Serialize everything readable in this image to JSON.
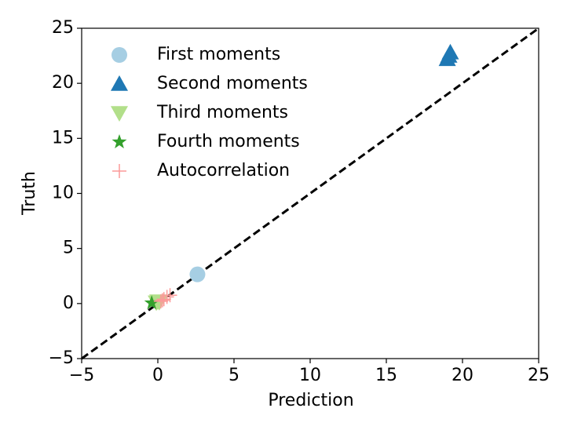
{
  "chart_data": {
    "type": "scatter",
    "x_label": "Prediction",
    "y_label": "Truth",
    "xlim": [
      -5,
      25
    ],
    "ylim": [
      -5,
      25
    ],
    "xticks": [
      {
        "value": -5,
        "label": "−5"
      },
      0,
      5,
      10,
      15,
      20,
      25
    ],
    "yticks": [
      {
        "value": -5,
        "label": "−5"
      },
      0,
      5,
      10,
      15,
      20,
      25
    ],
    "identity_line": true,
    "legend": "upper left",
    "series": [
      {
        "name": "First moments",
        "color": "#a6cee3",
        "marker": "circle",
        "x": [
          2.6
        ],
        "y": [
          2.65
        ]
      },
      {
        "name": "Second moments",
        "color": "#1f78b4",
        "marker": "triangle-up",
        "x": [
          19.0,
          19.1,
          19.2
        ],
        "y": [
          22.2,
          22.5,
          22.8
        ]
      },
      {
        "name": "Third moments",
        "color": "#b2df8a",
        "marker": "triangle-down",
        "x": [
          -0.1,
          0.0,
          0.1
        ],
        "y": [
          0.1,
          0.2,
          0.15
        ]
      },
      {
        "name": "Fourth moments",
        "color": "#33a02c",
        "marker": "star",
        "x": [
          -0.4
        ],
        "y": [
          0.05
        ]
      },
      {
        "name": "Autocorrelation",
        "color": "#fb9a99",
        "marker": "plus",
        "x": [
          0.2,
          0.3,
          0.4,
          0.6,
          0.8
        ],
        "y": [
          0.2,
          0.3,
          0.4,
          0.6,
          0.75
        ]
      }
    ]
  }
}
